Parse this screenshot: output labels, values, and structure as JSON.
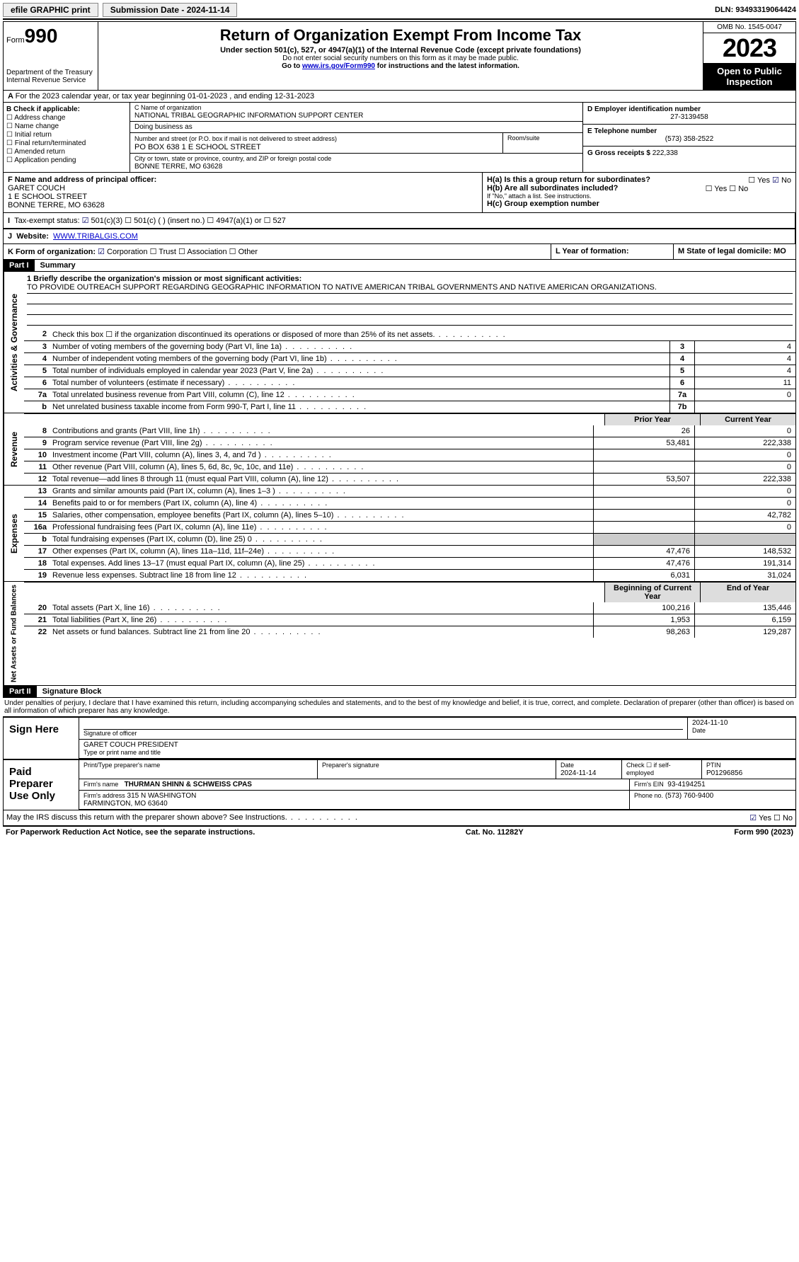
{
  "top": {
    "efile": "efile GRAPHIC print",
    "submission": "Submission Date - 2024-11-14",
    "dln": "DLN: 93493319064424"
  },
  "header": {
    "form_prefix": "Form",
    "form_no": "990",
    "dept": "Department of the Treasury\nInternal Revenue Service",
    "title": "Return of Organization Exempt From Income Tax",
    "sub": "Under section 501(c), 527, or 4947(a)(1) of the Internal Revenue Code (except private foundations)",
    "note1": "Do not enter social security numbers on this form as it may be made public.",
    "note2_pre": "Go to ",
    "note2_link": "www.irs.gov/Form990",
    "note2_post": " for instructions and the latest information.",
    "omb": "OMB No. 1545-0047",
    "year": "2023",
    "inspect": "Open to Public Inspection"
  },
  "row_a": "For the 2023 calendar year, or tax year beginning 01-01-2023   , and ending 12-31-2023",
  "box_b": {
    "label": "B Check if applicable:",
    "opts": [
      "Address change",
      "Name change",
      "Initial return",
      "Final return/terminated",
      "Amended return",
      "Application pending"
    ]
  },
  "box_c": {
    "name_label": "C Name of organization",
    "name": "NATIONAL TRIBAL GEOGRAPHIC INFORMATION SUPPORT CENTER",
    "dba": "Doing business as",
    "street_label": "Number and street (or P.O. box if mail is not delivered to street address)",
    "street": "PO BOX 638 1 E SCHOOL STREET",
    "room": "Room/suite",
    "city_label": "City or town, state or province, country, and ZIP or foreign postal code",
    "city": "BONNE TERRE, MO  63628"
  },
  "box_d": {
    "label": "D Employer identification number",
    "val": "27-3139458"
  },
  "box_e": {
    "label": "E Telephone number",
    "val": "(573) 358-2522"
  },
  "box_g": {
    "label": "G Gross receipts $",
    "val": "222,338"
  },
  "box_f": {
    "label": "F Name and address of principal officer:",
    "name": "GARET COUCH",
    "addr1": "1 E SCHOOL STREET",
    "addr2": "BONNE TERRE, MO  63628"
  },
  "box_h": {
    "a": "H(a)  Is this a group return for subordinates?",
    "b": "H(b)  Are all subordinates included?",
    "b_note": "If \"No,\" attach a list. See instructions.",
    "c": "H(c)  Group exemption number"
  },
  "row_i": "Tax-exempt status:",
  "row_i_opts": [
    "501(c)(3)",
    "501(c) (  ) (insert no.)",
    "4947(a)(1) or",
    "527"
  ],
  "row_j_label": "Website:",
  "row_j_val": "WWW.TRIBALGIS.COM",
  "row_k": "K Form of organization:",
  "row_k_opts": [
    "Corporation",
    "Trust",
    "Association",
    "Other"
  ],
  "row_l": "L Year of formation:",
  "row_m": "M State of legal domicile: MO",
  "part1": {
    "hdr": "Part I",
    "title": "Summary"
  },
  "mission_label": "1   Briefly describe the organization's mission or most significant activities:",
  "mission": "TO PROVIDE OUTREACH SUPPORT REGARDING GEOGRAPHIC INFORMATION TO NATIVE AMERICAN TRIBAL GOVERNMENTS AND NATIVE AMERICAN ORGANIZATIONS.",
  "sec_gov": "Activities & Governance",
  "sec_rev": "Revenue",
  "sec_exp": "Expenses",
  "sec_net": "Net Assets or Fund Balances",
  "lines_gov": [
    {
      "n": "2",
      "d": "Check this box ☐  if the organization discontinued its operations or disposed of more than 25% of its net assets.",
      "c": "",
      "v": ""
    },
    {
      "n": "3",
      "d": "Number of voting members of the governing body (Part VI, line 1a)",
      "c": "3",
      "v": "4"
    },
    {
      "n": "4",
      "d": "Number of independent voting members of the governing body (Part VI, line 1b)",
      "c": "4",
      "v": "4"
    },
    {
      "n": "5",
      "d": "Total number of individuals employed in calendar year 2023 (Part V, line 2a)",
      "c": "5",
      "v": "4"
    },
    {
      "n": "6",
      "d": "Total number of volunteers (estimate if necessary)",
      "c": "6",
      "v": "11"
    },
    {
      "n": "7a",
      "d": "Total unrelated business revenue from Part VIII, column (C), line 12",
      "c": "7a",
      "v": "0"
    },
    {
      "n": "b",
      "d": "Net unrelated business taxable income from Form 990-T, Part I, line 11",
      "c": "7b",
      "v": ""
    }
  ],
  "col_hdr": {
    "prior": "Prior Year",
    "curr": "Current Year"
  },
  "lines_rev": [
    {
      "n": "8",
      "d": "Contributions and grants (Part VIII, line 1h)",
      "p": "26",
      "c": "0"
    },
    {
      "n": "9",
      "d": "Program service revenue (Part VIII, line 2g)",
      "p": "53,481",
      "c": "222,338"
    },
    {
      "n": "10",
      "d": "Investment income (Part VIII, column (A), lines 3, 4, and 7d )",
      "p": "",
      "c": "0"
    },
    {
      "n": "11",
      "d": "Other revenue (Part VIII, column (A), lines 5, 6d, 8c, 9c, 10c, and 11e)",
      "p": "",
      "c": "0"
    },
    {
      "n": "12",
      "d": "Total revenue—add lines 8 through 11 (must equal Part VIII, column (A), line 12)",
      "p": "53,507",
      "c": "222,338"
    }
  ],
  "lines_exp": [
    {
      "n": "13",
      "d": "Grants and similar amounts paid (Part IX, column (A), lines 1–3 )",
      "p": "",
      "c": "0"
    },
    {
      "n": "14",
      "d": "Benefits paid to or for members (Part IX, column (A), line 4)",
      "p": "",
      "c": "0"
    },
    {
      "n": "15",
      "d": "Salaries, other compensation, employee benefits (Part IX, column (A), lines 5–10)",
      "p": "",
      "c": "42,782"
    },
    {
      "n": "16a",
      "d": "Professional fundraising fees (Part IX, column (A), line 11e)",
      "p": "",
      "c": "0"
    },
    {
      "n": "b",
      "d": "Total fundraising expenses (Part IX, column (D), line 25) 0",
      "p": "GREY",
      "c": "GREY"
    },
    {
      "n": "17",
      "d": "Other expenses (Part IX, column (A), lines 11a–11d, 11f–24e)",
      "p": "47,476",
      "c": "148,532"
    },
    {
      "n": "18",
      "d": "Total expenses. Add lines 13–17 (must equal Part IX, column (A), line 25)",
      "p": "47,476",
      "c": "191,314"
    },
    {
      "n": "19",
      "d": "Revenue less expenses. Subtract line 18 from line 12",
      "p": "6,031",
      "c": "31,024"
    }
  ],
  "col_hdr2": {
    "prior": "Beginning of Current Year",
    "curr": "End of Year"
  },
  "lines_net": [
    {
      "n": "20",
      "d": "Total assets (Part X, line 16)",
      "p": "100,216",
      "c": "135,446"
    },
    {
      "n": "21",
      "d": "Total liabilities (Part X, line 26)",
      "p": "1,953",
      "c": "6,159"
    },
    {
      "n": "22",
      "d": "Net assets or fund balances. Subtract line 21 from line 20",
      "p": "98,263",
      "c": "129,287"
    }
  ],
  "part2": {
    "hdr": "Part II",
    "title": "Signature Block"
  },
  "declaration": "Under penalties of perjury, I declare that I have examined this return, including accompanying schedules and statements, and to the best of my knowledge and belief, it is true, correct, and complete. Declaration of preparer (other than officer) is based on all information of which preparer has any knowledge.",
  "sign": {
    "left": "Sign Here",
    "sig_of": "Signature of officer",
    "date": "2024-11-10",
    "name": "GARET COUCH  PRESIDENT",
    "type": "Type or print name and title"
  },
  "paid": {
    "left": "Paid Preparer Use Only",
    "h1": "Print/Type preparer's name",
    "h2": "Preparer's signature",
    "h3": "Date",
    "h3v": "2024-11-14",
    "h4": "Check ☐ if self-employed",
    "h5": "PTIN",
    "h5v": "P01296856",
    "firm_label": "Firm's name",
    "firm": "THURMAN SHINN & SCHWEISS CPAS",
    "ein_label": "Firm's EIN",
    "ein": "93-4194251",
    "addr_label": "Firm's address",
    "addr": "315 N WASHINGTON\nFARMINGTON, MO  63640",
    "phone_label": "Phone no.",
    "phone": "(573) 760-9400"
  },
  "irs_discuss": "May the IRS discuss this return with the preparer shown above? See Instructions.",
  "footer": {
    "l": "For Paperwork Reduction Act Notice, see the separate instructions.",
    "m": "Cat. No. 11282Y",
    "r": "Form 990 (2023)"
  }
}
